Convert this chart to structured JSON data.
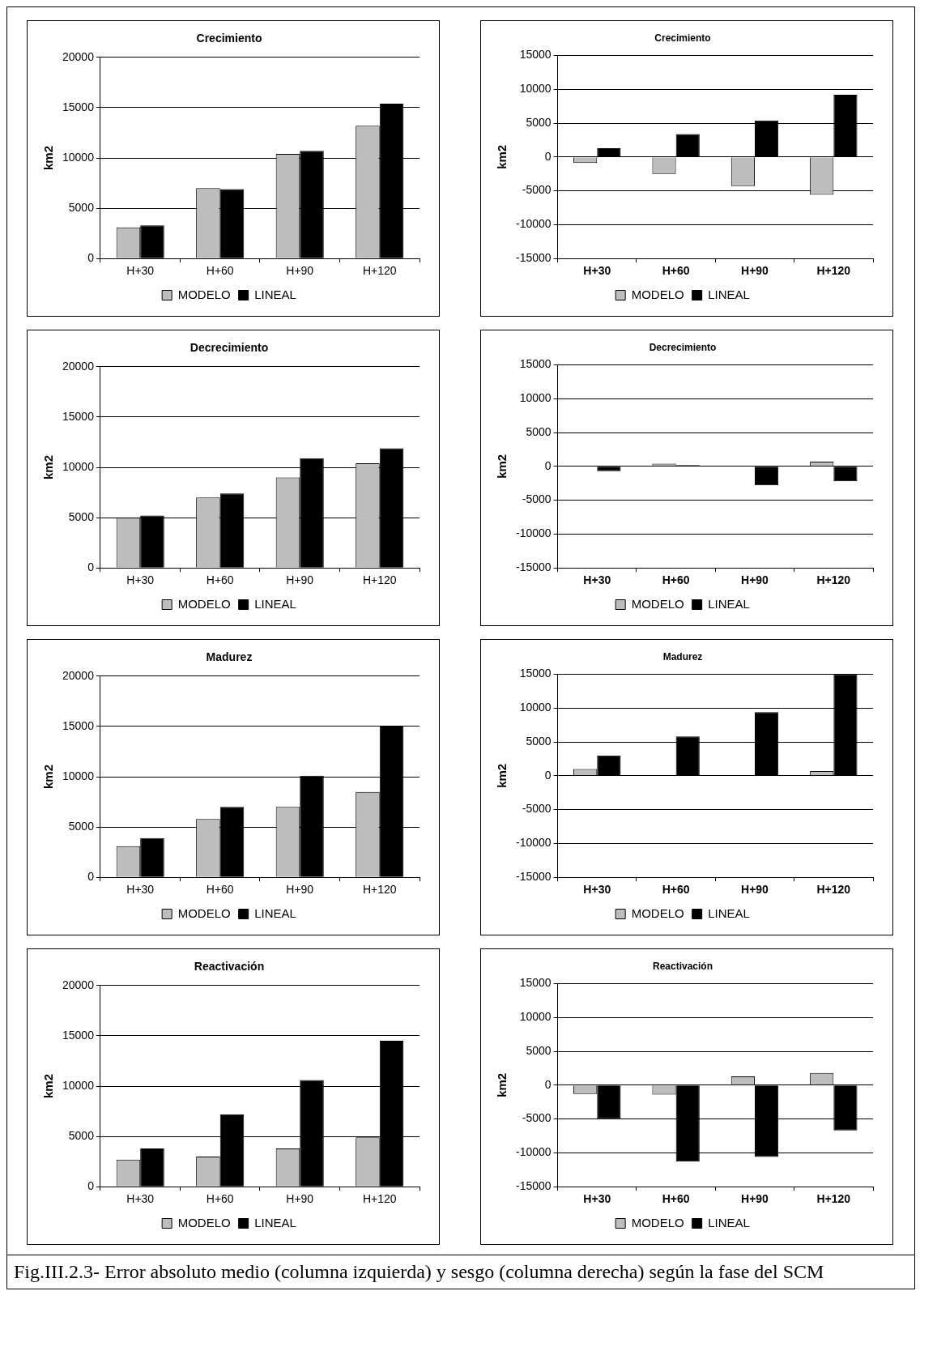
{
  "chart_data": [
    {
      "type": "bar",
      "title": "Crecimiento",
      "ylabel": "km2",
      "categories": [
        "H+30",
        "H+60",
        "H+90",
        "H+120"
      ],
      "ylim": [
        0,
        20000
      ],
      "yticks": [
        0,
        5000,
        10000,
        15000,
        20000
      ],
      "grid": "y",
      "legend": "bottom",
      "series": [
        {
          "name": "MODELO",
          "color": "#bdbdbd",
          "values": [
            3100,
            7000,
            10400,
            13200
          ]
        },
        {
          "name": "LINEAL",
          "color": "#000000",
          "values": [
            3300,
            6900,
            10700,
            15400
          ]
        }
      ]
    },
    {
      "type": "bar",
      "title": "Crecimiento",
      "ylabel": "km2",
      "categories": [
        "H+30",
        "H+60",
        "H+90",
        "H+120"
      ],
      "ylim": [
        -15000,
        15000
      ],
      "yticks": [
        -15000,
        -10000,
        -5000,
        0,
        5000,
        10000,
        15000
      ],
      "grid": "y",
      "legend": "bottom",
      "series": [
        {
          "name": "MODELO",
          "color": "#bdbdbd",
          "values": [
            -900,
            -2500,
            -4300,
            -5600
          ]
        },
        {
          "name": "LINEAL",
          "color": "#000000",
          "values": [
            1300,
            3400,
            5400,
            9200
          ]
        }
      ]
    },
    {
      "type": "bar",
      "title": "Decrecimiento",
      "ylabel": "km2",
      "categories": [
        "H+30",
        "H+60",
        "H+90",
        "H+120"
      ],
      "ylim": [
        0,
        20000
      ],
      "yticks": [
        0,
        5000,
        10000,
        15000,
        20000
      ],
      "grid": "y",
      "legend": "bottom",
      "series": [
        {
          "name": "MODELO",
          "color": "#bdbdbd",
          "values": [
            5000,
            7000,
            9000,
            10400
          ]
        },
        {
          "name": "LINEAL",
          "color": "#000000",
          "values": [
            5200,
            7400,
            10900,
            11900
          ]
        }
      ]
    },
    {
      "type": "bar",
      "title": "Decrecimiento",
      "ylabel": "km2",
      "categories": [
        "H+30",
        "H+60",
        "H+90",
        "H+120"
      ],
      "ylim": [
        -15000,
        15000
      ],
      "yticks": [
        -15000,
        -10000,
        -5000,
        0,
        5000,
        10000,
        15000
      ],
      "grid": "y",
      "legend": "bottom",
      "series": [
        {
          "name": "MODELO",
          "color": "#bdbdbd",
          "values": [
            0,
            400,
            0,
            700
          ]
        },
        {
          "name": "LINEAL",
          "color": "#000000",
          "values": [
            -700,
            200,
            -2800,
            -2200
          ]
        }
      ]
    },
    {
      "type": "bar",
      "title": "Madurez",
      "ylabel": "km2",
      "categories": [
        "H+30",
        "H+60",
        "H+90",
        "H+120"
      ],
      "ylim": [
        0,
        20000
      ],
      "yticks": [
        0,
        5000,
        10000,
        15000,
        20000
      ],
      "grid": "y",
      "legend": "bottom",
      "series": [
        {
          "name": "MODELO",
          "color": "#bdbdbd",
          "values": [
            3100,
            5800,
            7000,
            8500
          ]
        },
        {
          "name": "LINEAL",
          "color": "#000000",
          "values": [
            3900,
            7000,
            10100,
            15000
          ]
        }
      ]
    },
    {
      "type": "bar",
      "title": "Madurez",
      "ylabel": "km2",
      "categories": [
        "H+30",
        "H+60",
        "H+90",
        "H+120"
      ],
      "ylim": [
        -15000,
        15000
      ],
      "yticks": [
        -15000,
        -10000,
        -5000,
        0,
        5000,
        10000,
        15000
      ],
      "grid": "y",
      "legend": "bottom",
      "series": [
        {
          "name": "MODELO",
          "color": "#bdbdbd",
          "values": [
            1000,
            null,
            0,
            700
          ]
        },
        {
          "name": "LINEAL",
          "color": "#000000",
          "values": [
            3000,
            5800,
            9400,
            15000
          ]
        }
      ]
    },
    {
      "type": "bar",
      "title": "Reactivación",
      "ylabel": "km2",
      "categories": [
        "H+30",
        "H+60",
        "H+90",
        "H+120"
      ],
      "ylim": [
        0,
        20000
      ],
      "yticks": [
        0,
        5000,
        10000,
        15000,
        20000
      ],
      "grid": "y",
      "legend": "bottom",
      "series": [
        {
          "name": "MODELO",
          "color": "#bdbdbd",
          "values": [
            2700,
            3000,
            3800,
            4900
          ]
        },
        {
          "name": "LINEAL",
          "color": "#000000",
          "values": [
            3800,
            7200,
            10600,
            14500
          ]
        }
      ]
    },
    {
      "type": "bar",
      "title": "Reactivación",
      "ylabel": "km2",
      "categories": [
        "H+30",
        "H+60",
        "H+90",
        "H+120"
      ],
      "ylim": [
        -15000,
        15000
      ],
      "yticks": [
        -15000,
        -10000,
        -5000,
        0,
        5000,
        10000,
        15000
      ],
      "grid": "y",
      "legend": "bottom",
      "series": [
        {
          "name": "MODELO",
          "color": "#bdbdbd",
          "values": [
            -1300,
            -1400,
            1300,
            1800
          ]
        },
        {
          "name": "LINEAL",
          "color": "#000000",
          "values": [
            -5000,
            -11300,
            -10600,
            -6700
          ]
        }
      ],
      "annotations": [
        "Fig.III.2.3- Error absoluto medio (columna izquierda) y sesgo (columna derecha) según la fase del SCM"
      ]
    }
  ]
}
